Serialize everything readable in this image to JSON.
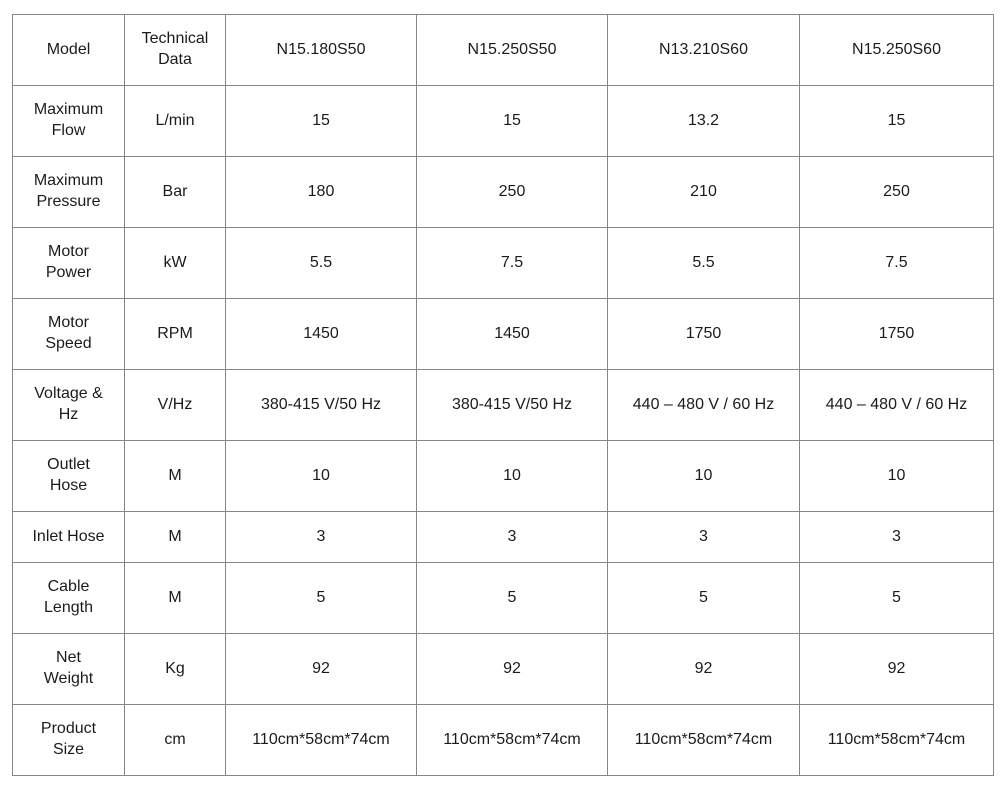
{
  "table": {
    "header": {
      "model_label": "Model",
      "technical_data_label": "Technical\nData",
      "models": [
        "N15.180S50",
        "N15.250S50",
        "N13.210S60",
        "N15.250S60"
      ]
    },
    "rows": [
      {
        "label": "Maximum\nFlow",
        "bold": true,
        "short": false,
        "unit": "L/min",
        "values": [
          "15",
          "15",
          "13.2",
          "15"
        ]
      },
      {
        "label": "Maximum\nPressure",
        "bold": true,
        "short": false,
        "unit": "Bar",
        "values": [
          "180",
          "250",
          "210",
          "250"
        ]
      },
      {
        "label": "Motor\nPower",
        "bold": true,
        "short": false,
        "unit": "kW",
        "values": [
          "5.5",
          "7.5",
          "5.5",
          "7.5"
        ]
      },
      {
        "label": "Motor\nSpeed",
        "bold": true,
        "short": false,
        "unit": "RPM",
        "values": [
          "1450",
          "1450",
          "1750",
          "1750"
        ]
      },
      {
        "label": "Voltage &\nHz",
        "bold": true,
        "short": false,
        "unit": "V/Hz",
        "values": [
          "380-415 V/50 Hz",
          "380-415 V/50 Hz",
          "440 – 480 V / 60 Hz",
          "440 – 480 V / 60 Hz"
        ]
      },
      {
        "label": "Outlet\nHose",
        "bold": false,
        "short": false,
        "unit": "M",
        "values": [
          "10",
          "10",
          "10",
          "10"
        ]
      },
      {
        "label": "Inlet Hose",
        "bold": false,
        "short": true,
        "unit": "M",
        "values": [
          "3",
          "3",
          "3",
          "3"
        ]
      },
      {
        "label": "Cable\nLength",
        "bold": false,
        "short": false,
        "unit": "M",
        "values": [
          "5",
          "5",
          "5",
          "5"
        ]
      },
      {
        "label": "Net\nWeight",
        "bold": false,
        "short": false,
        "unit": "Kg",
        "values": [
          "92",
          "92",
          "92",
          "92"
        ]
      },
      {
        "label": "Product\nSize",
        "bold": false,
        "short": false,
        "unit": "cm",
        "values": [
          "110cm*58cm*74cm",
          "110cm*58cm*74cm",
          "110cm*58cm*74cm",
          "110cm*58cm*74cm"
        ]
      }
    ]
  },
  "colors": {
    "border": "#878787",
    "text": "#1b1b1b",
    "background": "#ffffff"
  }
}
